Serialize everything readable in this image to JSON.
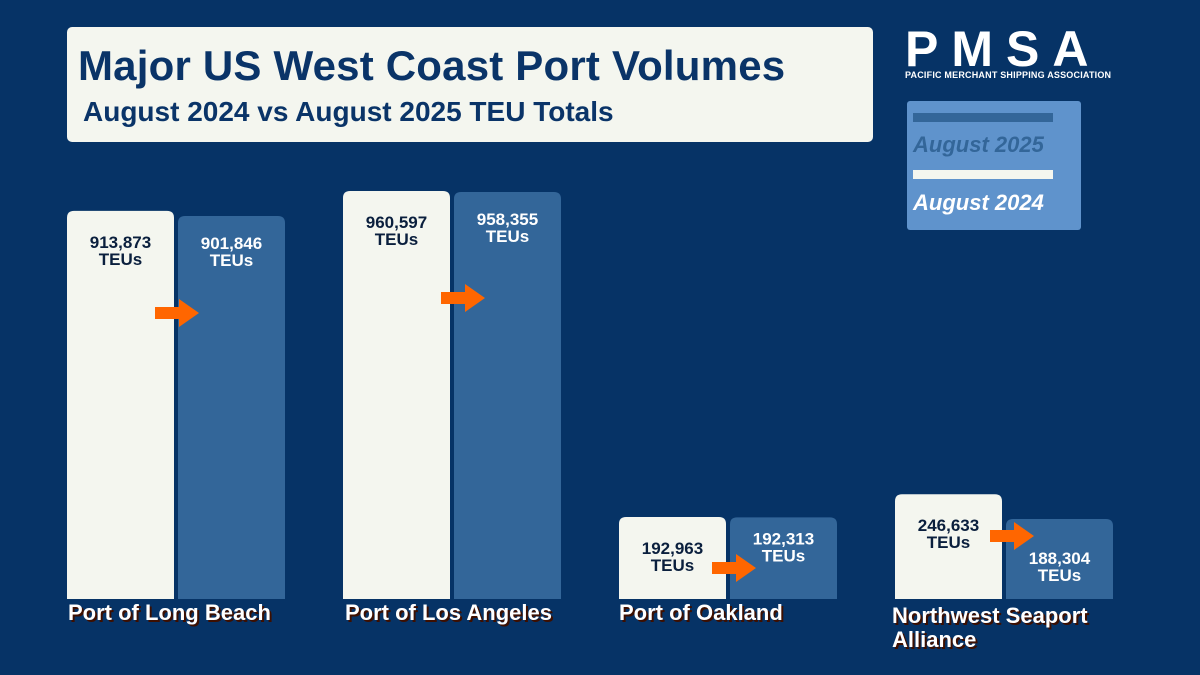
{
  "header": {
    "title": "Major US West Coast Port Volumes",
    "subtitle": "August 2024 vs August 2025 TEU Totals"
  },
  "logo": {
    "name": "PMSA",
    "tagline": "PACIFIC MERCHANT SHIPPING ASSOCIATION"
  },
  "legend": {
    "items": [
      {
        "label": "August 2025",
        "color": "#336699",
        "text_color": "#336699"
      },
      {
        "label": "August 2024",
        "color": "#f4f6ef",
        "text_color": "#ffffff"
      }
    ]
  },
  "colors": {
    "background": "#063366",
    "aug2024": "#f4f6ef",
    "aug2025": "#336699",
    "arrow": "#ff6600",
    "dark_text": "#0a1f3d",
    "light_text": "#ffffff"
  },
  "chart_data": {
    "type": "bar",
    "categories": [
      "Port of Long Beach",
      "Port of Los Angeles",
      "Port of Oakland",
      "Northwest Seaport Alliance"
    ],
    "series": [
      {
        "name": "August 2024",
        "values": [
          913873,
          960597,
          192963,
          246633
        ]
      },
      {
        "name": "August 2025",
        "values": [
          901846,
          958355,
          192313,
          188304
        ]
      }
    ],
    "data_labels": {
      "August 2024": [
        "913,873",
        "960,597",
        "192,963",
        "246,633"
      ],
      "August 2025": [
        "901,846",
        "958,355",
        "192,313",
        "188,304"
      ]
    },
    "unit": "TEUs",
    "title": "Major US West Coast Port Volumes",
    "subtitle": "August 2024 vs August 2025 TEU Totals",
    "legend_position": "top-right",
    "grid": false
  }
}
